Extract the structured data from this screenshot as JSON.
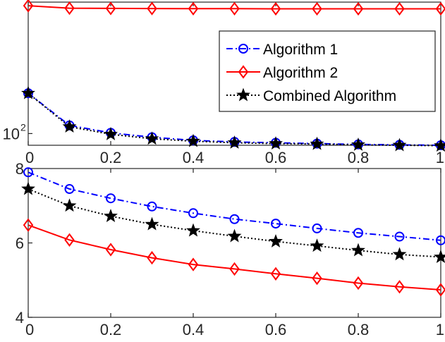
{
  "chart_data": [
    {
      "type": "line",
      "yscale": "log",
      "x": [
        0,
        0.1,
        0.2,
        0.3,
        0.4,
        0.5,
        0.6,
        0.7,
        0.8,
        0.9,
        1.0
      ],
      "xlim": [
        0,
        1
      ],
      "ylim": [
        85,
        620
      ],
      "xticks": [
        "0",
        "0.2",
        "0.4",
        "0.6",
        "0.8",
        "1"
      ],
      "yticks": [
        {
          "base": "10",
          "exp": "2",
          "value": 100
        }
      ],
      "series": [
        {
          "name": "Algorithm 1",
          "color": "#0000ff",
          "marker": "circle",
          "style": "dashdot",
          "values": [
            175,
            112,
            101,
            95,
            91,
            89,
            88,
            87,
            86,
            85.5,
            85
          ]
        },
        {
          "name": "Algorithm 2",
          "color": "#ff0000",
          "marker": "diamond",
          "style": "solid",
          "values": [
            590,
            570,
            568,
            567,
            566,
            566,
            565,
            565,
            565,
            565,
            565
          ]
        },
        {
          "name": "Combined Algorithm",
          "color": "#000000",
          "marker": "star",
          "style": "dotted",
          "values": [
            175,
            110,
            99,
            93,
            90,
            88,
            87,
            86.5,
            85.5,
            85,
            84.5
          ]
        }
      ],
      "legend": {
        "position": "top-right",
        "entries": [
          "Algorithm 1",
          "Algorithm 2",
          "Combined Algorithm"
        ]
      }
    },
    {
      "type": "line",
      "x": [
        0,
        0.1,
        0.2,
        0.3,
        0.4,
        0.5,
        0.6,
        0.7,
        0.8,
        0.9,
        1.0
      ],
      "xlim": [
        0,
        1
      ],
      "ylim": [
        4,
        8
      ],
      "xticks": [
        "0",
        "0.2",
        "0.4",
        "0.6",
        "0.8",
        "1"
      ],
      "yticks": [
        "4",
        "6",
        "8"
      ],
      "series": [
        {
          "name": "Algorithm 1",
          "color": "#0000ff",
          "marker": "circle",
          "style": "dashdot",
          "values": [
            7.9,
            7.45,
            7.2,
            6.98,
            6.8,
            6.64,
            6.52,
            6.39,
            6.27,
            6.17,
            6.07
          ]
        },
        {
          "name": "Algorithm 2",
          "color": "#ff0000",
          "marker": "diamond",
          "style": "solid",
          "values": [
            6.48,
            6.08,
            5.82,
            5.6,
            5.42,
            5.3,
            5.17,
            5.05,
            4.92,
            4.82,
            4.74
          ]
        },
        {
          "name": "Combined Algorithm",
          "color": "#000000",
          "marker": "star",
          "style": "dotted",
          "values": [
            7.45,
            7.0,
            6.72,
            6.5,
            6.33,
            6.18,
            6.04,
            5.92,
            5.8,
            5.69,
            5.62
          ]
        }
      ]
    }
  ]
}
